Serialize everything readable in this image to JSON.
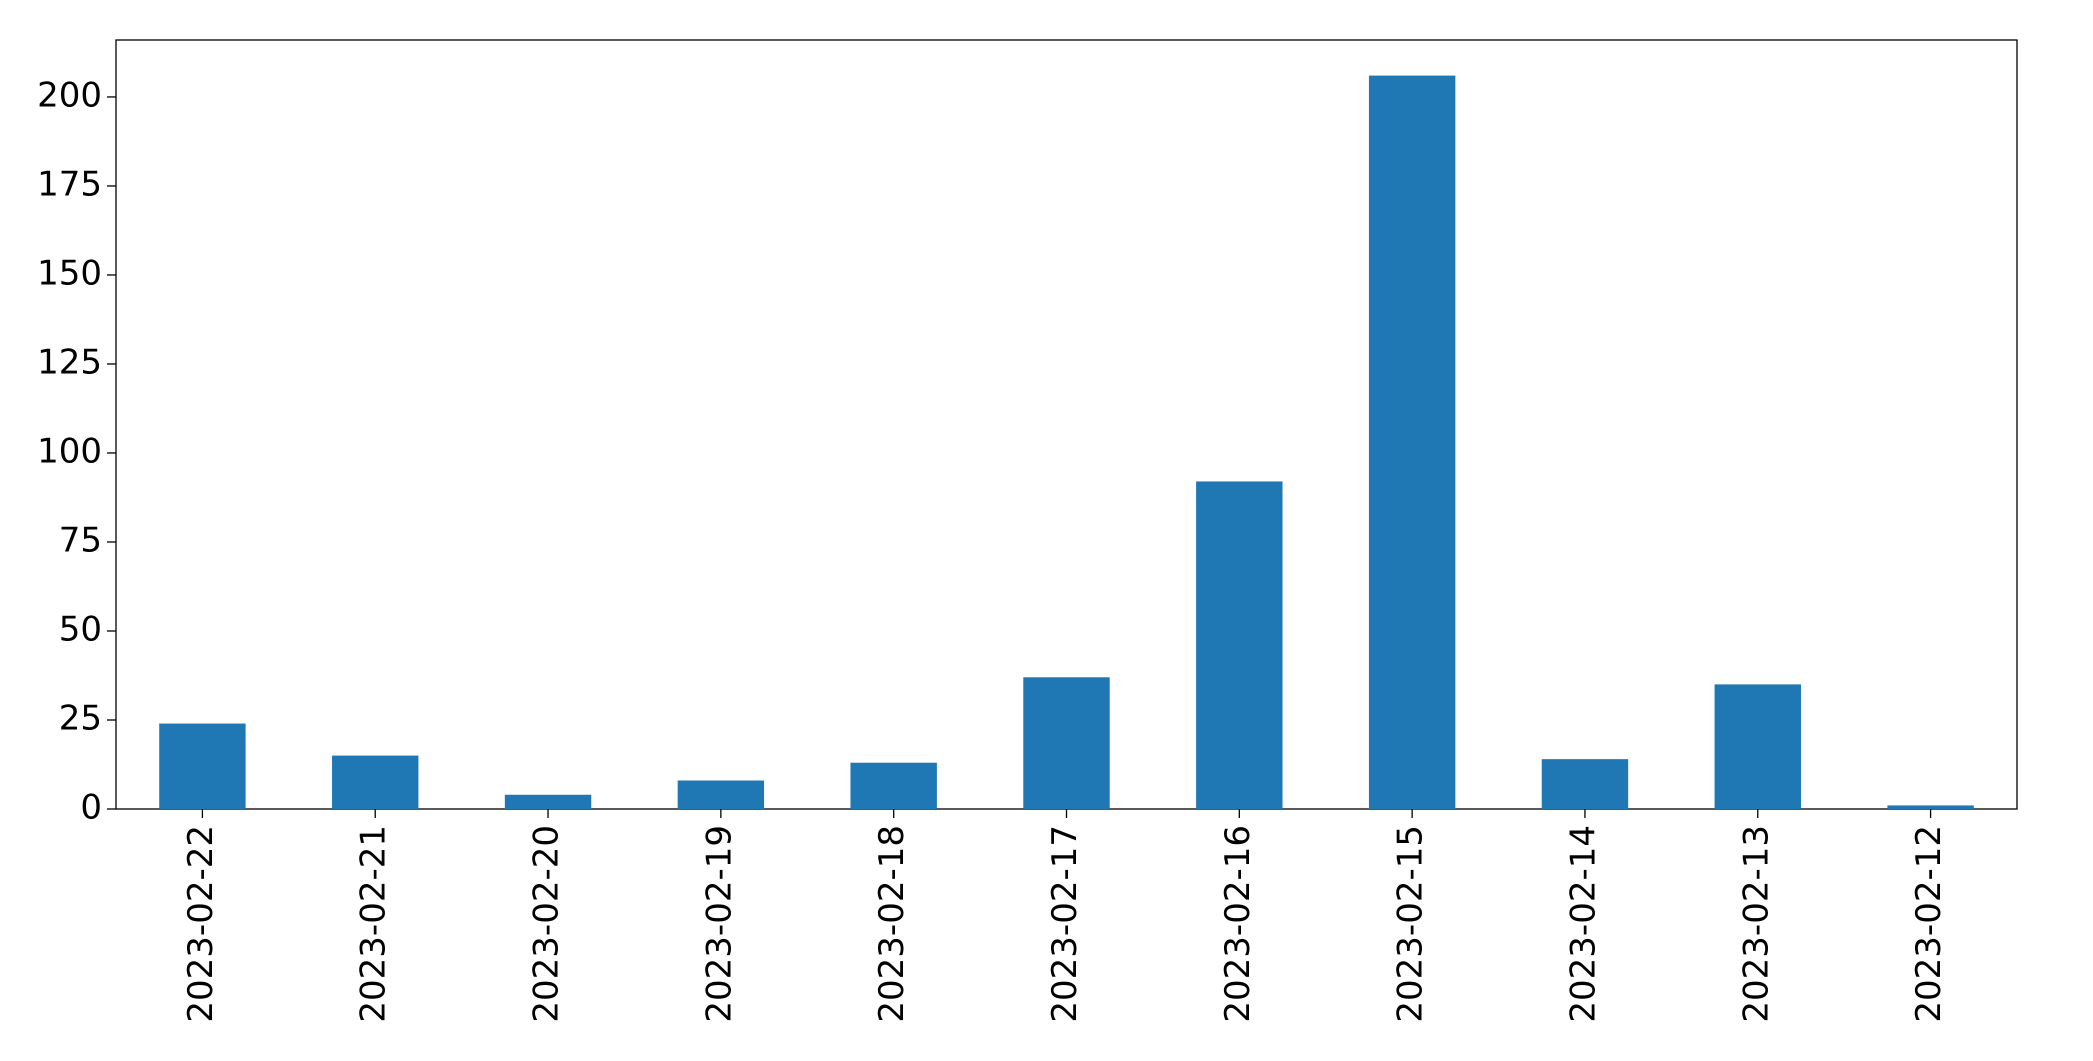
{
  "chart_data": {
    "type": "bar",
    "categories": [
      "2023-02-22",
      "2023-02-21",
      "2023-02-20",
      "2023-02-19",
      "2023-02-18",
      "2023-02-17",
      "2023-02-16",
      "2023-02-15",
      "2023-02-14",
      "2023-02-13",
      "2023-02-12"
    ],
    "values": [
      24,
      15,
      4,
      8,
      13,
      37,
      92,
      206,
      14,
      35,
      1
    ],
    "color": "#1f77b4",
    "ylim": [
      0,
      216
    ],
    "yticks": [
      0,
      25,
      50,
      75,
      100,
      125,
      150,
      175,
      200
    ],
    "grid": false
  }
}
